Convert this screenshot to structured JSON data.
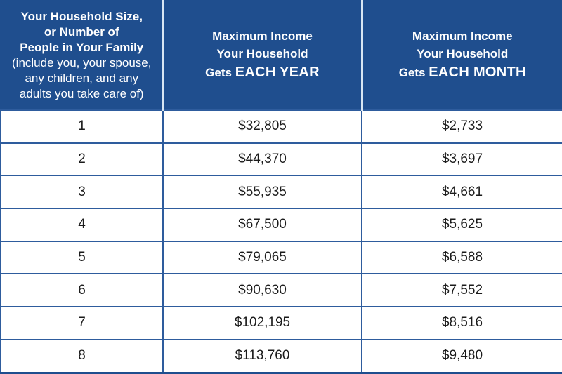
{
  "colors": {
    "header_background": "#1f4e8e",
    "header_text": "#ffffff",
    "header_divider": "#d8e6f3",
    "body_border": "#2e5c9d",
    "body_background": "#ffffff",
    "body_text": "#1b1b1b"
  },
  "table": {
    "header": {
      "col1": {
        "bold": "Your Household Size,\nor Number of\nPeople in Your Family",
        "normal": "(include you, your spouse,\nany children, and any\nadults you take care of)"
      },
      "col2": {
        "top": "Maximum Income\nYour Household",
        "gets": "Gets",
        "period": "EACH YEAR"
      },
      "col3": {
        "top": "Maximum Income\nYour  Household",
        "gets": "Gets",
        "period": "EACH MONTH"
      }
    },
    "rows": [
      {
        "size": "1",
        "year": "$32,805",
        "month": "$2,733"
      },
      {
        "size": "2",
        "year": "$44,370",
        "month": "$3,697"
      },
      {
        "size": "3",
        "year": "$55,935",
        "month": "$4,661"
      },
      {
        "size": "4",
        "year": "$67,500",
        "month": "$5,625"
      },
      {
        "size": "5",
        "year": "$79,065",
        "month": "$6,588"
      },
      {
        "size": "6",
        "year": "$90,630",
        "month": "$7,552"
      },
      {
        "size": "7",
        "year": "$102,195",
        "month": "$8,516"
      },
      {
        "size": "8",
        "year": "$113,760",
        "month": "$9,480"
      }
    ]
  },
  "chart_data": {
    "type": "table",
    "title": "Maximum household income eligibility limits by household size",
    "columns": [
      "Your Household Size, or Number of People in Your Family (include you, your spouse, any children, and any adults you take care of)",
      "Maximum Income Your Household Gets EACH YEAR",
      "Maximum Income Your Household Gets EACH MONTH"
    ],
    "categories": [
      1,
      2,
      3,
      4,
      5,
      6,
      7,
      8
    ],
    "series": [
      {
        "name": "Maximum Income Each Year",
        "values": [
          32805,
          44370,
          55935,
          67500,
          79065,
          90630,
          102195,
          113760
        ]
      },
      {
        "name": "Maximum Income Each Month",
        "values": [
          2733,
          3697,
          4661,
          5625,
          6588,
          7552,
          8516,
          9480
        ]
      }
    ]
  }
}
